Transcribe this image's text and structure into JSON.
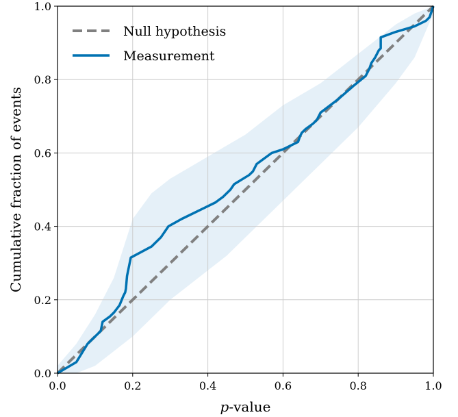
{
  "chart_data": {
    "type": "line",
    "xlabel_prefix": "p",
    "xlabel_suffix": "-value",
    "ylabel": "Cumulative fraction of events",
    "xlim": [
      0,
      1
    ],
    "ylim": [
      0,
      1
    ],
    "xticks": [
      "0.0",
      "0.2",
      "0.4",
      "0.6",
      "0.8",
      "1.0"
    ],
    "yticks": [
      "0.0",
      "0.2",
      "0.4",
      "0.6",
      "0.8",
      "1.0"
    ],
    "grid": true,
    "legend_position": "top-left",
    "series": [
      {
        "name": "Null hypothesis",
        "style": "dashed",
        "color": "#808080",
        "x": [
          0.0,
          1.0
        ],
        "y": [
          0.0,
          1.0
        ]
      },
      {
        "name": "Measurement",
        "style": "solid",
        "color": "#0072b2",
        "x": [
          0.0,
          0.05,
          0.08,
          0.105,
          0.115,
          0.12,
          0.14,
          0.15,
          0.165,
          0.175,
          0.18,
          0.182,
          0.185,
          0.19,
          0.195,
          0.25,
          0.275,
          0.295,
          0.33,
          0.39,
          0.42,
          0.44,
          0.46,
          0.47,
          0.51,
          0.52,
          0.53,
          0.57,
          0.6,
          0.64,
          0.645,
          0.65,
          0.66,
          0.68,
          0.69,
          0.7,
          0.745,
          0.79,
          0.82,
          0.83,
          0.835,
          0.845,
          0.85,
          0.855,
          0.86,
          0.86,
          0.9,
          0.95,
          0.98,
          0.99,
          1.0
        ],
        "y": [
          0.0,
          0.03,
          0.08,
          0.105,
          0.115,
          0.14,
          0.155,
          0.165,
          0.185,
          0.21,
          0.22,
          0.23,
          0.265,
          0.29,
          0.315,
          0.345,
          0.37,
          0.4,
          0.42,
          0.45,
          0.465,
          0.48,
          0.5,
          0.515,
          0.54,
          0.55,
          0.57,
          0.6,
          0.61,
          0.63,
          0.645,
          0.655,
          0.665,
          0.68,
          0.69,
          0.71,
          0.745,
          0.785,
          0.81,
          0.83,
          0.845,
          0.86,
          0.87,
          0.88,
          0.885,
          0.915,
          0.93,
          0.945,
          0.96,
          0.97,
          1.0
        ]
      }
    ],
    "band": {
      "color": "#cfe4f3",
      "x": [
        0.0,
        0.05,
        0.1,
        0.15,
        0.2,
        0.25,
        0.3,
        0.35,
        0.4,
        0.45,
        0.5,
        0.55,
        0.6,
        0.65,
        0.7,
        0.75,
        0.8,
        0.85,
        0.9,
        0.95,
        1.0
      ],
      "lower": [
        0.0,
        0.0,
        0.02,
        0.06,
        0.1,
        0.15,
        0.2,
        0.24,
        0.28,
        0.32,
        0.37,
        0.42,
        0.47,
        0.52,
        0.57,
        0.62,
        0.67,
        0.73,
        0.79,
        0.86,
        0.98
      ],
      "upper": [
        0.02,
        0.08,
        0.16,
        0.26,
        0.42,
        0.49,
        0.53,
        0.56,
        0.59,
        0.62,
        0.65,
        0.69,
        0.73,
        0.76,
        0.79,
        0.83,
        0.87,
        0.91,
        0.95,
        0.98,
        1.0
      ]
    }
  }
}
